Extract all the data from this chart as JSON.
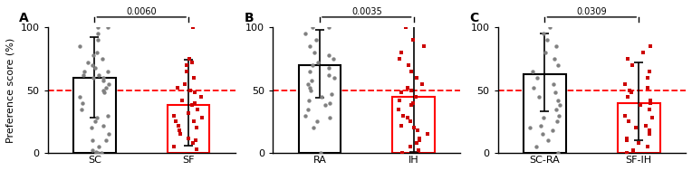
{
  "panels": [
    {
      "label": "A",
      "categories": [
        "SC",
        "SF"
      ],
      "bar_means": [
        60,
        38
      ],
      "bar_errors_upper": [
        32,
        36
      ],
      "bar_errors_lower": [
        32,
        32
      ],
      "bar_edge_colors": [
        "black",
        "red"
      ],
      "dot_colors": [
        "#808080",
        "#cc0000"
      ],
      "dot_shapes": [
        "o",
        "s"
      ],
      "pvalue": "0.0060",
      "dots_0": [
        0,
        0,
        0,
        1,
        2,
        5,
        10,
        10,
        15,
        20,
        22,
        25,
        28,
        30,
        35,
        40,
        45,
        48,
        50,
        52,
        55,
        58,
        60,
        60,
        62,
        62,
        65,
        65,
        68,
        70,
        72,
        75,
        78,
        80,
        85,
        90,
        95,
        100,
        100
      ],
      "dots_1": [
        3,
        5,
        8,
        10,
        12,
        15,
        18,
        20,
        22,
        25,
        25,
        28,
        30,
        32,
        35,
        38,
        40,
        42,
        45,
        48,
        50,
        52,
        55,
        60,
        65,
        70,
        72,
        75,
        100
      ]
    },
    {
      "label": "B",
      "categories": [
        "RA",
        "IH"
      ],
      "bar_means": [
        70,
        45
      ],
      "bar_errors_upper": [
        28,
        57
      ],
      "bar_errors_lower": [
        26,
        44
      ],
      "bar_edge_colors": [
        "black",
        "red"
      ],
      "dot_colors": [
        "#808080",
        "#cc0000"
      ],
      "dot_shapes": [
        "o",
        "s"
      ],
      "pvalue": "0.0035",
      "dots_0": [
        0,
        20,
        25,
        28,
        30,
        35,
        38,
        40,
        42,
        45,
        47,
        50,
        52,
        55,
        58,
        60,
        62,
        65,
        68,
        70,
        72,
        75,
        78,
        80,
        85,
        90,
        95,
        100,
        100
      ],
      "dots_1": [
        0,
        2,
        5,
        8,
        10,
        12,
        15,
        18,
        20,
        22,
        25,
        28,
        30,
        35,
        38,
        40,
        42,
        45,
        48,
        50,
        52,
        55,
        60,
        65,
        70,
        75,
        80,
        85,
        90,
        100
      ]
    },
    {
      "label": "C",
      "categories": [
        "SC-RA",
        "SF-IH"
      ],
      "bar_means": [
        63,
        40
      ],
      "bar_errors_upper": [
        32,
        32
      ],
      "bar_errors_lower": [
        30,
        30
      ],
      "bar_edge_colors": [
        "black",
        "red"
      ],
      "dot_colors": [
        "#808080",
        "#cc0000"
      ],
      "dot_shapes": [
        "o",
        "s"
      ],
      "pvalue": "0.0309",
      "dots_0": [
        0,
        5,
        10,
        15,
        18,
        20,
        22,
        25,
        28,
        30,
        35,
        38,
        42,
        45,
        48,
        52,
        55,
        60,
        65,
        70,
        75,
        80,
        85,
        90,
        95,
        100
      ],
      "dots_1": [
        0,
        2,
        5,
        8,
        10,
        12,
        15,
        18,
        20,
        22,
        25,
        28,
        30,
        35,
        38,
        40,
        42,
        45,
        48,
        50,
        52,
        55,
        60,
        65,
        70,
        75,
        80,
        85
      ]
    }
  ],
  "ylabel": "Preference score (%)",
  "ylim": [
    0,
    100
  ],
  "yticks": [
    0,
    50,
    100
  ],
  "dashed_line_y": 50,
  "dashed_color": "#ff0000",
  "background_color": "white",
  "bar_width": 0.45,
  "x_positions": [
    0.7,
    1.7
  ],
  "xlim": [
    0.2,
    2.2
  ]
}
